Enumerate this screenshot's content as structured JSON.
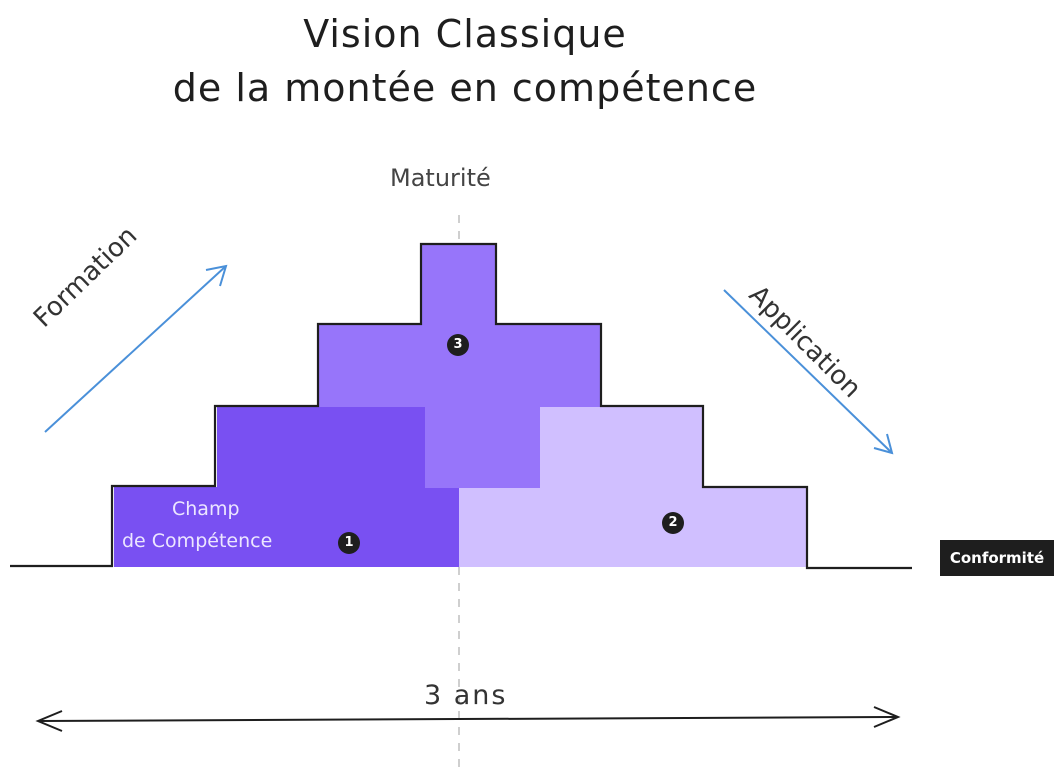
{
  "title": {
    "line1": "Vision Classique",
    "line2": "de la montée en compétence"
  },
  "labels": {
    "vertical_axis": "Maturité",
    "left_arrow": "Formation",
    "right_arrow": "Application",
    "field_line1": "Champ",
    "field_line2": "de Compétence",
    "baseline_badge": "Conformité",
    "duration": "3 ans"
  },
  "markers": [
    "1",
    "2",
    "3"
  ],
  "colors": {
    "zone1": "#7950f2",
    "zone2": "#d0bfff",
    "zone3": "#9775fa",
    "outline": "#1e1e1e",
    "arrow_blue": "#4a90d9",
    "center_dash": "#cccccc"
  }
}
